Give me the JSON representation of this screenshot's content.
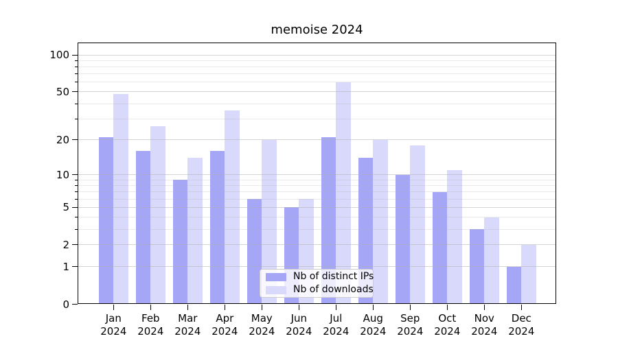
{
  "chart_data": {
    "type": "bar",
    "title": "memoise 2024",
    "categories": [
      "Jan\n2024",
      "Feb\n2024",
      "Mar\n2024",
      "Apr\n2024",
      "May\n2024",
      "Jun\n2024",
      "Jul\n2024",
      "Aug\n2024",
      "Sep\n2024",
      "Oct\n2024",
      "Nov\n2024",
      "Dec\n2024"
    ],
    "series": [
      {
        "name": "Nb of distinct IPs",
        "color": "#a6a6f7",
        "values": [
          21,
          16,
          9,
          16,
          6,
          5,
          21,
          14,
          10,
          7,
          3,
          1
        ]
      },
      {
        "name": "Nb of downloads",
        "color": "#d9d9fb",
        "values": [
          48,
          26,
          14,
          35,
          20,
          6,
          60,
          20,
          18,
          11,
          4,
          2
        ]
      }
    ],
    "xlabel": "",
    "ylabel": "",
    "yscale": "log1p",
    "ylim": [
      0,
      126
    ],
    "yticks": [
      0,
      1,
      2,
      5,
      10,
      20,
      50,
      100
    ],
    "yticks_minor": [
      3,
      4,
      6,
      7,
      8,
      9,
      30,
      40,
      60,
      70,
      80,
      90
    ],
    "grid": "horizontal-major-and-minor",
    "legend_position": "lower-center-inside",
    "colors": {
      "bar_distinct_ips": "#a6a6f7",
      "bar_downloads": "#d9d9fb",
      "grid_major": "rgba(176,176,176,0.55)",
      "grid_minor": "rgba(176,176,176,0.28)",
      "axis": "#000000",
      "text": "#000000",
      "background": "#ffffff"
    }
  }
}
